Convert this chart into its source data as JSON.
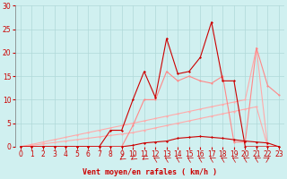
{
  "xlabel": "Vent moyen/en rafales ( km/h )",
  "xlim": [
    -0.5,
    23.5
  ],
  "ylim": [
    0,
    30
  ],
  "yticks": [
    0,
    5,
    10,
    15,
    20,
    25,
    30
  ],
  "xticks": [
    0,
    1,
    2,
    3,
    4,
    5,
    6,
    7,
    8,
    9,
    10,
    11,
    12,
    13,
    14,
    15,
    16,
    17,
    18,
    19,
    20,
    21,
    22,
    23
  ],
  "bg_color": "#d0f0f0",
  "grid_color": "#b0d8d8",
  "text_color": "#cc0000",
  "line_color_dark": "#cc0000",
  "line_color_light": "#ffaaaa",
  "line_color_mid": "#ff8888",
  "x": [
    0,
    1,
    2,
    3,
    4,
    5,
    6,
    7,
    8,
    9,
    10,
    11,
    12,
    13,
    14,
    15,
    16,
    17,
    18,
    19,
    20,
    21,
    22,
    23
  ],
  "y_linear1": [
    0,
    0.5,
    1,
    1.5,
    2,
    2.5,
    3,
    3.5,
    4,
    4.5,
    5,
    5.5,
    6,
    6.5,
    7,
    7.5,
    8,
    8.5,
    9,
    9.5,
    10,
    21,
    0,
    0
  ],
  "y_linear2": [
    0,
    0.3,
    0.6,
    0.9,
    1.2,
    1.5,
    1.8,
    2.1,
    2.4,
    2.7,
    3,
    3.5,
    4,
    4.5,
    5,
    5.5,
    6,
    6.5,
    7,
    7.5,
    8,
    8.5,
    0,
    0
  ],
  "y_peaked": [
    0,
    0,
    0,
    0,
    0,
    0,
    0,
    0,
    3.5,
    3.5,
    10,
    16,
    10.5,
    23,
    15.5,
    16,
    19,
    26.5,
    14,
    14,
    0,
    0,
    0,
    0
  ],
  "y_peaked2": [
    0,
    0,
    0,
    0,
    0,
    0,
    0,
    0,
    0,
    0,
    4.5,
    10,
    10,
    16,
    14,
    15,
    14,
    13.5,
    15,
    1,
    1,
    21,
    13,
    11
  ],
  "y_flat": [
    0,
    0,
    0,
    0,
    0,
    0,
    0,
    0,
    0,
    0,
    0.3,
    0.8,
    1,
    1.2,
    1.8,
    2,
    2.2,
    2,
    1.8,
    1.5,
    1.2,
    1,
    0.8,
    0
  ],
  "arrows_x": [
    9,
    10,
    11,
    12,
    13,
    14,
    15,
    16,
    17,
    18,
    19,
    20,
    21,
    22
  ],
  "arrow_angles": [
    225,
    225,
    225,
    315,
    315,
    315,
    315,
    315,
    315,
    315,
    315,
    315,
    315,
    45
  ]
}
